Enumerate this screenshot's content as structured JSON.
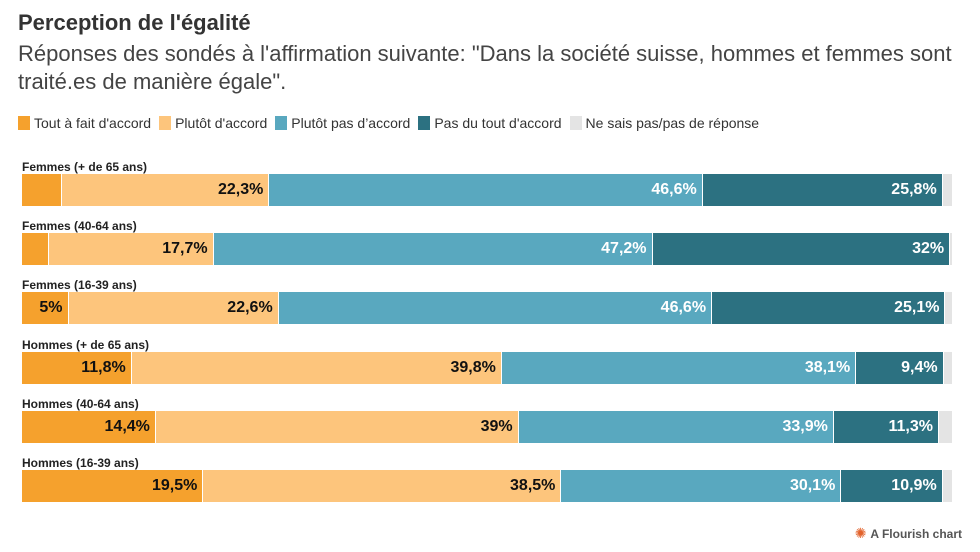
{
  "header": {
    "title": "Perception de l'égalité",
    "subtitle": "Réponses des sondés à l'affirmation suivante: \"Dans la société suisse, hommes et femmes sont traité.es de manière égale\"."
  },
  "footer": {
    "credit": "A Flourish chart",
    "credit_icon": "flourish-logo-icon"
  },
  "chart_data": {
    "type": "bar",
    "stacked": true,
    "orientation": "horizontal",
    "title": "Perception de l'égalité",
    "subtitle": "Réponses des sondés à l'affirmation suivante: \"Dans la société suisse, hommes et femmes sont traité.es de manière égale\".",
    "legend_position": "top-left",
    "xlim": [
      0,
      100
    ],
    "categories": [
      "Femmes (+ de 65 ans)",
      "Femmes (40-64 ans)",
      "Femmes (16-39 ans)",
      "Hommes (+ de 65 ans)",
      "Hommes (40-64 ans)",
      "Hommes (16-39 ans)"
    ],
    "series": [
      {
        "name": "Tout à fait d'accord",
        "color": "#f5a12d",
        "label_color": "dark",
        "values": [
          4.3,
          2.9,
          5,
          11.8,
          14.4,
          19.5
        ],
        "labels": [
          "",
          "",
          "5%",
          "11,8%",
          "14,4%",
          "19,5%"
        ]
      },
      {
        "name": "Plutôt d'accord",
        "color": "#fdc57c",
        "label_color": "dark",
        "values": [
          22.3,
          17.7,
          22.6,
          39.8,
          39,
          38.5
        ],
        "labels": [
          "22,3%",
          "17,7%",
          "22,6%",
          "39,8%",
          "39%",
          "38,5%"
        ]
      },
      {
        "name": "Plutôt pas d’accord",
        "color": "#59a8bf",
        "label_color": "light",
        "values": [
          46.6,
          47.2,
          46.6,
          38.1,
          33.9,
          30.1
        ],
        "labels": [
          "46,6%",
          "47,2%",
          "46,6%",
          "38,1%",
          "33,9%",
          "30,1%"
        ]
      },
      {
        "name": "Pas du tout d'accord",
        "color": "#2c7181",
        "label_color": "light",
        "values": [
          25.8,
          32,
          25.1,
          9.4,
          11.3,
          10.9
        ],
        "labels": [
          "25,8%",
          "32%",
          "25,1%",
          "9,4%",
          "11,3%",
          "10,9%"
        ]
      },
      {
        "name": "Ne sais pas/pas de réponse",
        "color": "#e4e4e4",
        "label_color": "dark",
        "values": [
          1,
          0.2,
          0.7,
          0.9,
          1.4,
          1
        ],
        "labels": [
          "",
          "",
          "",
          "",
          "",
          ""
        ]
      }
    ]
  }
}
